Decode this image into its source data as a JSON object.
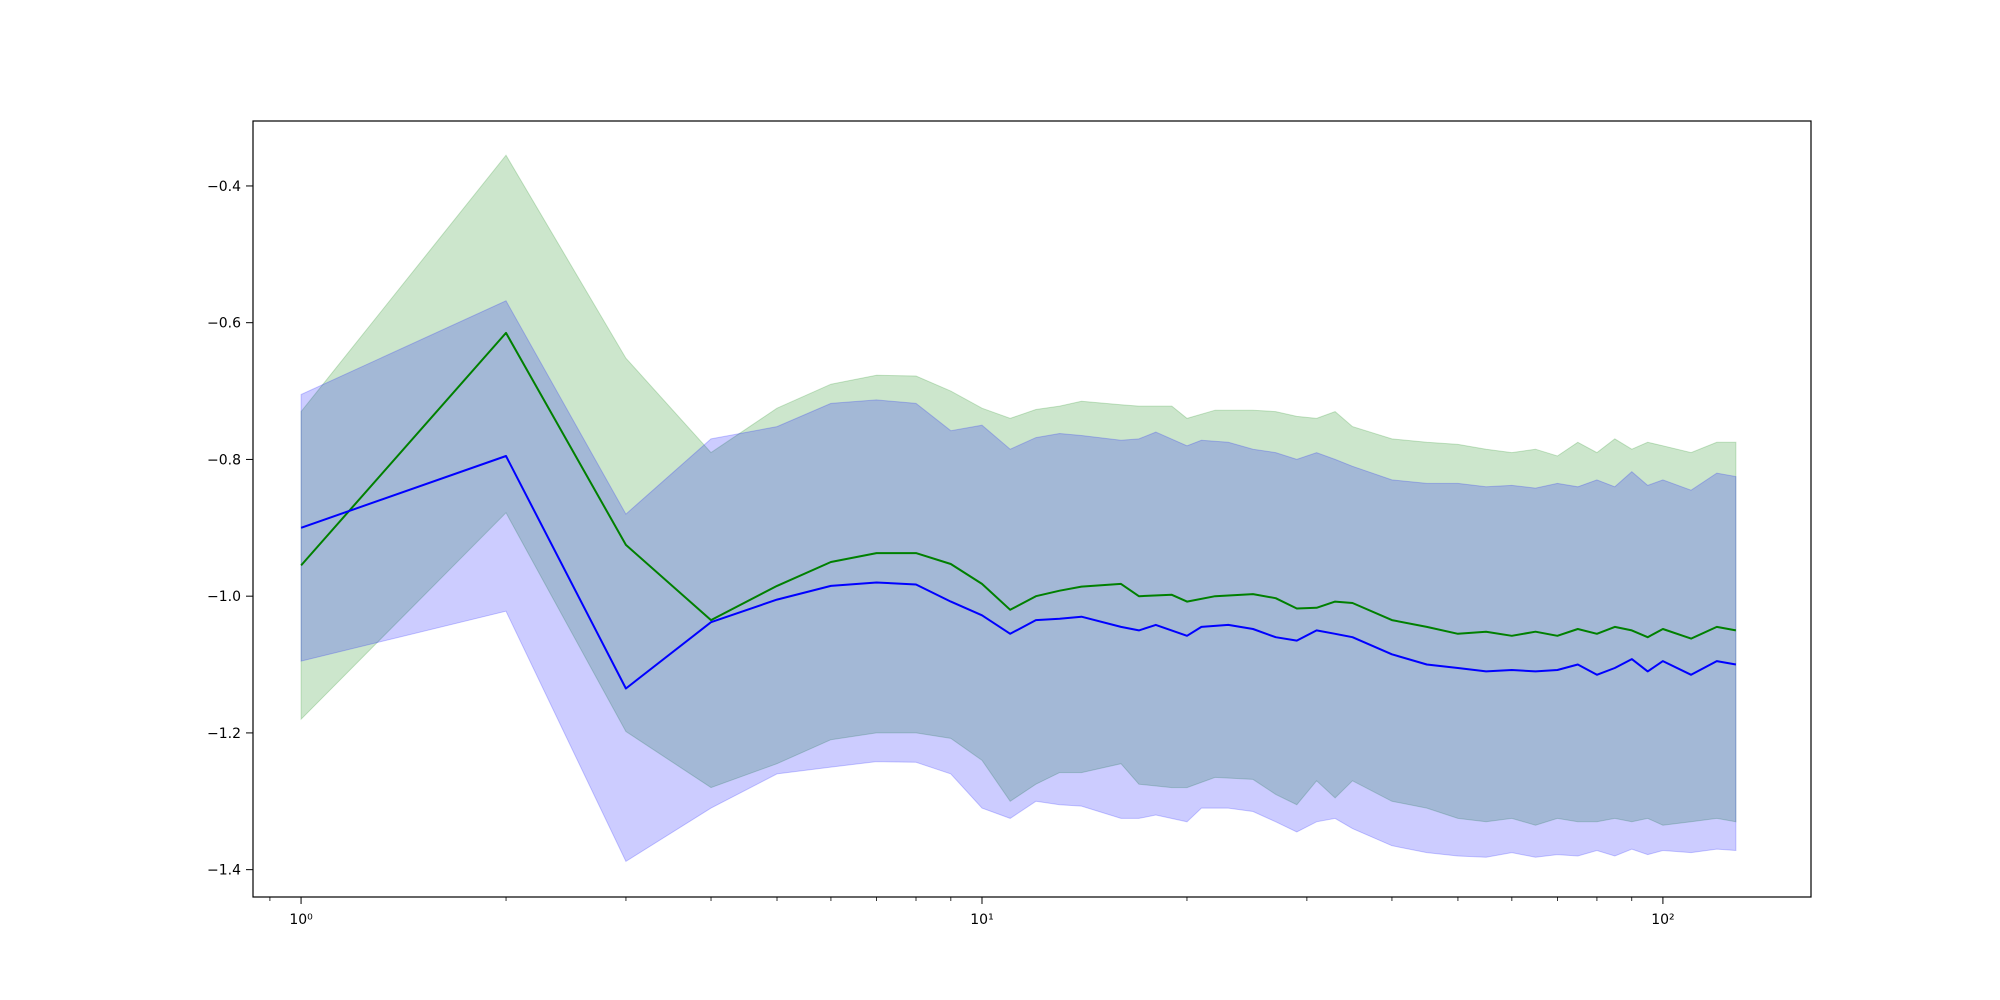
{
  "chart_data": {
    "type": "line",
    "title": "",
    "xlabel": "",
    "ylabel": "",
    "x_scale": "log",
    "xlim": [
      0.85,
      165
    ],
    "ylim": [
      -1.44,
      -0.305
    ],
    "grid": false,
    "legend": "none",
    "x_ticks": [
      {
        "value": 1,
        "label": "10⁰"
      },
      {
        "value": 10,
        "label": "10¹"
      },
      {
        "value": 100,
        "label": "10²"
      }
    ],
    "y_ticks": [
      {
        "value": -0.4,
        "label": "−0.4"
      },
      {
        "value": -0.6,
        "label": "−0.6"
      },
      {
        "value": -0.8,
        "label": "−0.8"
      },
      {
        "value": -1.0,
        "label": "−1.0"
      },
      {
        "value": -1.2,
        "label": "−1.2"
      },
      {
        "value": -1.4,
        "label": "−1.4"
      }
    ],
    "series": [
      {
        "color": "#008000",
        "band_color": "#008000",
        "band_opacity": 0.2,
        "x": [
          1,
          2,
          3,
          4,
          5,
          6,
          7,
          8,
          9,
          10,
          11,
          12,
          13,
          14,
          16,
          17,
          19,
          20,
          22,
          25,
          27,
          29,
          31,
          33,
          35,
          40,
          45,
          50,
          55,
          60,
          65,
          70,
          75,
          80,
          85,
          90,
          95,
          100,
          110,
          120,
          128
        ],
        "values": [
          -0.955,
          -0.615,
          -0.925,
          -1.035,
          -0.985,
          -0.95,
          -0.937,
          -0.937,
          -0.953,
          -0.982,
          -1.02,
          -1.0,
          -0.992,
          -0.986,
          -0.982,
          -1.0,
          -0.998,
          -1.008,
          -1.0,
          -0.997,
          -1.003,
          -1.018,
          -1.017,
          -1.008,
          -1.01,
          -1.035,
          -1.045,
          -1.055,
          -1.052,
          -1.058,
          -1.052,
          -1.058,
          -1.048,
          -1.055,
          -1.045,
          -1.05,
          -1.06,
          -1.048,
          -1.062,
          -1.045,
          -1.05
        ],
        "upper": [
          -0.73,
          -0.355,
          -0.652,
          -0.79,
          -0.725,
          -0.69,
          -0.677,
          -0.678,
          -0.7,
          -0.725,
          -0.74,
          -0.727,
          -0.722,
          -0.715,
          -0.72,
          -0.722,
          -0.722,
          -0.74,
          -0.728,
          -0.728,
          -0.73,
          -0.737,
          -0.74,
          -0.73,
          -0.752,
          -0.77,
          -0.775,
          -0.778,
          -0.785,
          -0.79,
          -0.785,
          -0.795,
          -0.775,
          -0.79,
          -0.77,
          -0.785,
          -0.775,
          -0.78,
          -0.79,
          -0.775,
          -0.775
        ],
        "lower": [
          -1.18,
          -0.878,
          -1.198,
          -1.28,
          -1.245,
          -1.21,
          -1.2,
          -1.2,
          -1.208,
          -1.24,
          -1.3,
          -1.275,
          -1.258,
          -1.258,
          -1.245,
          -1.275,
          -1.28,
          -1.28,
          -1.265,
          -1.268,
          -1.29,
          -1.305,
          -1.27,
          -1.295,
          -1.27,
          -1.3,
          -1.31,
          -1.325,
          -1.33,
          -1.325,
          -1.335,
          -1.325,
          -1.33,
          -1.33,
          -1.325,
          -1.33,
          -1.325,
          -1.335,
          -1.33,
          -1.325,
          -1.33
        ]
      },
      {
        "color": "#0000ff",
        "band_color": "#0000ff",
        "band_opacity": 0.2,
        "x": [
          1,
          2,
          3,
          4,
          5,
          6,
          7,
          8,
          9,
          10,
          11,
          12,
          13,
          14,
          16,
          17,
          18,
          20,
          21,
          23,
          25,
          27,
          29,
          31,
          33,
          35,
          40,
          45,
          50,
          55,
          60,
          65,
          70,
          75,
          80,
          85,
          90,
          95,
          100,
          110,
          120,
          128
        ],
        "values": [
          -0.9,
          -0.795,
          -1.135,
          -1.038,
          -1.005,
          -0.985,
          -0.98,
          -0.983,
          -1.008,
          -1.028,
          -1.055,
          -1.035,
          -1.033,
          -1.03,
          -1.045,
          -1.05,
          -1.042,
          -1.058,
          -1.045,
          -1.042,
          -1.048,
          -1.06,
          -1.065,
          -1.05,
          -1.055,
          -1.06,
          -1.085,
          -1.1,
          -1.105,
          -1.11,
          -1.108,
          -1.11,
          -1.108,
          -1.1,
          -1.115,
          -1.105,
          -1.092,
          -1.11,
          -1.095,
          -1.115,
          -1.095,
          -1.1
        ],
        "upper": [
          -0.705,
          -0.568,
          -0.88,
          -0.77,
          -0.752,
          -0.718,
          -0.713,
          -0.718,
          -0.758,
          -0.75,
          -0.785,
          -0.768,
          -0.762,
          -0.765,
          -0.772,
          -0.77,
          -0.76,
          -0.78,
          -0.772,
          -0.775,
          -0.785,
          -0.79,
          -0.8,
          -0.79,
          -0.8,
          -0.81,
          -0.83,
          -0.835,
          -0.835,
          -0.84,
          -0.838,
          -0.842,
          -0.835,
          -0.84,
          -0.83,
          -0.84,
          -0.818,
          -0.838,
          -0.83,
          -0.845,
          -0.82,
          -0.825
        ],
        "lower": [
          -1.095,
          -1.022,
          -1.388,
          -1.31,
          -1.26,
          -1.25,
          -1.242,
          -1.243,
          -1.26,
          -1.31,
          -1.325,
          -1.3,
          -1.305,
          -1.307,
          -1.325,
          -1.325,
          -1.32,
          -1.33,
          -1.31,
          -1.31,
          -1.315,
          -1.33,
          -1.345,
          -1.33,
          -1.325,
          -1.34,
          -1.365,
          -1.375,
          -1.38,
          -1.382,
          -1.375,
          -1.382,
          -1.378,
          -1.38,
          -1.372,
          -1.38,
          -1.37,
          -1.378,
          -1.372,
          -1.375,
          -1.37,
          -1.372
        ]
      }
    ]
  }
}
